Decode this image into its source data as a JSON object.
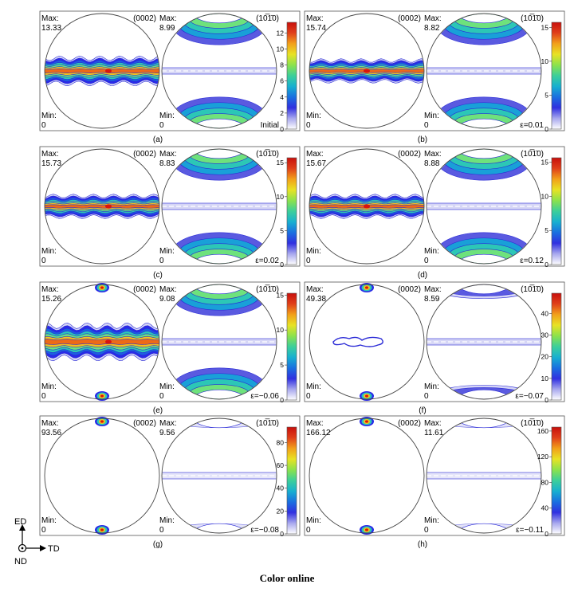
{
  "caption": "Color online",
  "axes_key": {
    "up": "ED",
    "right": "TD",
    "normal": "ND"
  },
  "colors": {
    "dense": [
      "#ffffff",
      "#d6d6f6",
      "#5a5ae0",
      "#2a2ae8",
      "#1c5fe0",
      "#19a0d8",
      "#2cc7b6",
      "#6ee27c",
      "#c6ec3a",
      "#f4c21c",
      "#ee6a16",
      "#d8140e"
    ],
    "outline": "#2a2ad6"
  },
  "chart_data": [
    {
      "panel": "a",
      "label": "(a)",
      "type": "pole_figure",
      "strain": "Initial",
      "poles": [
        {
          "plane": "(0002)",
          "max": "13.33",
          "min": "0"
        },
        {
          "plane": "(10̅1̄0)",
          "max": "8.99",
          "min": "0"
        }
      ],
      "colorbar": {
        "ticks": [
          "0",
          "2",
          "4",
          "6",
          "8",
          "10",
          "12"
        ],
        "range": [
          0,
          13.33
        ]
      },
      "texture": {
        "type": "band",
        "spread": 0.22,
        "ring": 1.0,
        "c_poles": 0
      }
    },
    {
      "panel": "b",
      "label": "(b)",
      "type": "pole_figure",
      "strain": "ε=0.01",
      "poles": [
        {
          "plane": "(0002)",
          "max": "15.74",
          "min": "0"
        },
        {
          "plane": "(10̅1̄0)",
          "max": "8.82",
          "min": "0"
        }
      ],
      "colorbar": {
        "ticks": [
          "0",
          "5",
          "10",
          "15"
        ],
        "range": [
          0,
          15.74
        ]
      },
      "texture": {
        "type": "band",
        "spread": 0.18,
        "ring": 1.0,
        "c_poles": 0
      }
    },
    {
      "panel": "c",
      "label": "(c)",
      "type": "pole_figure",
      "strain": "ε=0.02",
      "poles": [
        {
          "plane": "(0002)",
          "max": "15.73",
          "min": "0"
        },
        {
          "plane": "(10̅1̄0)",
          "max": "8.83",
          "min": "0"
        }
      ],
      "colorbar": {
        "ticks": [
          "0",
          "5",
          "10",
          "15"
        ],
        "range": [
          0,
          15.73
        ]
      },
      "texture": {
        "type": "band",
        "spread": 0.18,
        "ring": 1.0,
        "c_poles": 0
      }
    },
    {
      "panel": "d",
      "label": "(d)",
      "type": "pole_figure",
      "strain": "ε=0.12",
      "poles": [
        {
          "plane": "(0002)",
          "max": "15.67",
          "min": "0"
        },
        {
          "plane": "(10̅1̄0)",
          "max": "8.88",
          "min": "0"
        }
      ],
      "colorbar": {
        "ticks": [
          "0",
          "5",
          "10",
          "15"
        ],
        "range": [
          0,
          15.67
        ]
      },
      "texture": {
        "type": "band",
        "spread": 0.18,
        "ring": 1.0,
        "c_poles": 0
      }
    },
    {
      "panel": "e",
      "label": "(e)",
      "type": "pole_figure",
      "strain": "ε=−0.06",
      "poles": [
        {
          "plane": "(0002)",
          "max": "15.26",
          "min": "0"
        },
        {
          "plane": "(10̅1̄0)",
          "max": "9.08",
          "min": "0"
        }
      ],
      "colorbar": {
        "ticks": [
          "0",
          "5",
          "10",
          "15"
        ],
        "range": [
          0,
          15.26
        ]
      },
      "texture": {
        "type": "band",
        "spread": 0.28,
        "ring": 1.0,
        "c_poles": 1
      }
    },
    {
      "panel": "f",
      "label": "(f)",
      "type": "pole_figure",
      "strain": "ε=−0.07",
      "poles": [
        {
          "plane": "(0002)",
          "max": "49.38",
          "min": "0"
        },
        {
          "plane": "(10̅1̄0)",
          "max": "8.59",
          "min": "0"
        }
      ],
      "colorbar": {
        "ticks": [
          "0",
          "10",
          "20",
          "30",
          "40"
        ],
        "range": [
          0,
          49.38
        ]
      },
      "texture": {
        "type": "poles",
        "spread": 0.1,
        "ring": 0.45,
        "c_poles": 1
      }
    },
    {
      "panel": "g",
      "label": "(g)",
      "type": "pole_figure",
      "strain": "ε=−0.08",
      "poles": [
        {
          "plane": "(0002)",
          "max": "93.56",
          "min": "0"
        },
        {
          "plane": "(10̅1̄0)",
          "max": "9.56",
          "min": "0"
        }
      ],
      "colorbar": {
        "ticks": [
          "0",
          "20",
          "40",
          "60",
          "80"
        ],
        "range": [
          0,
          93.56
        ]
      },
      "texture": {
        "type": "poles",
        "spread": 0.06,
        "ring": 0.2,
        "c_poles": 1
      }
    },
    {
      "panel": "h",
      "label": "(h)",
      "type": "pole_figure",
      "strain": "ε=−0.11",
      "poles": [
        {
          "plane": "(0002)",
          "max": "166.12",
          "min": "0"
        },
        {
          "plane": "(10̅1̄0)",
          "max": "11.61",
          "min": "0"
        }
      ],
      "colorbar": {
        "ticks": [
          "0",
          "40",
          "80",
          "120",
          "160"
        ],
        "range": [
          0,
          166.12
        ]
      },
      "texture": {
        "type": "poles",
        "spread": 0.04,
        "ring": 0.0,
        "c_poles": 1
      }
    }
  ]
}
